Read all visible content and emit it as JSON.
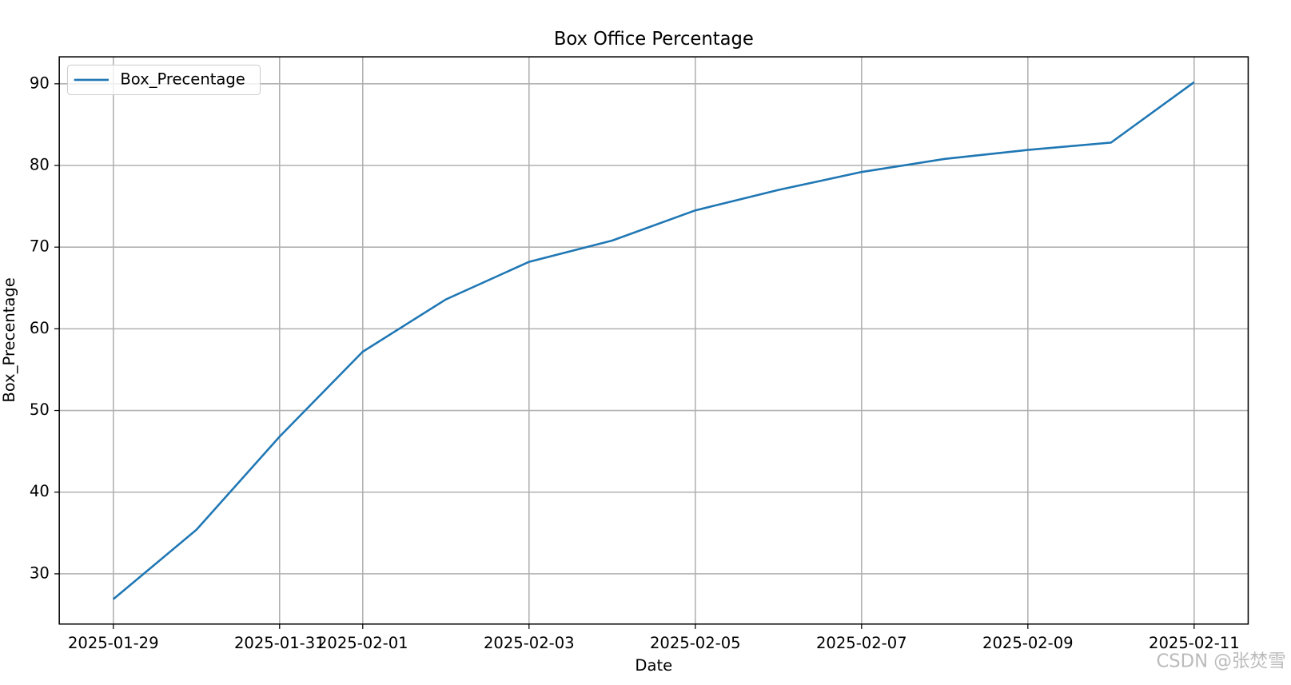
{
  "chart_data": {
    "type": "line",
    "title": "Box Office Percentage",
    "x_label": "Date",
    "y_label": "Box_Precentage",
    "x": [
      "2025-01-29",
      "2025-01-30",
      "2025-01-31",
      "2025-02-01",
      "2025-02-02",
      "2025-02-03",
      "2025-02-04",
      "2025-02-05",
      "2025-02-06",
      "2025-02-07",
      "2025-02-08",
      "2025-02-09",
      "2025-02-10",
      "2025-02-11"
    ],
    "series": [
      {
        "name": "Box_Precentage",
        "color": "#1f77b4",
        "values": [
          26.9,
          35.4,
          46.8,
          57.2,
          63.6,
          68.2,
          70.8,
          74.5,
          77.0,
          79.2,
          80.8,
          81.9,
          82.8,
          90.2
        ]
      }
    ],
    "xlim": [
      "2025-01-29",
      "2025-02-11"
    ],
    "xticks": [
      "2025-01-29",
      "2025-01-31",
      "2025-02-01",
      "2025-02-03",
      "2025-02-05",
      "2025-02-07",
      "2025-02-09",
      "2025-02-11"
    ],
    "ylim": [
      23.85,
      93.3
    ],
    "yticks": [
      30,
      40,
      50,
      60,
      70,
      80,
      90
    ],
    "grid": true,
    "legend": "upper left",
    "watermark": "CSDN @张焚雪"
  }
}
